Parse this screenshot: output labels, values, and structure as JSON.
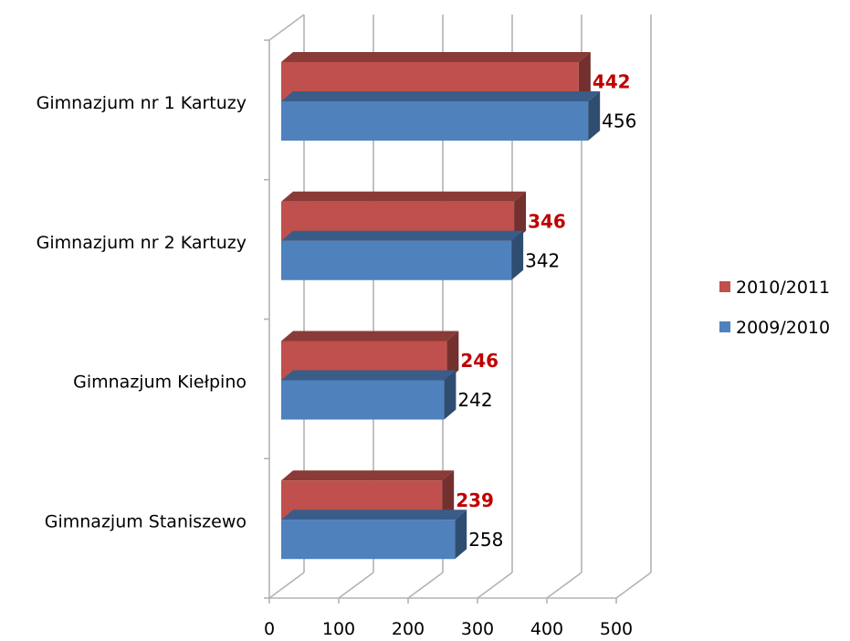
{
  "chart_data": {
    "type": "bar",
    "orientation": "horizontal",
    "style": "3d",
    "categories": [
      "Gimnazjum nr 1 Kartuzy",
      "Gimnazjum nr 2 Kartuzy",
      "Gimnazjum Kiełpino",
      "Gimnazjum Staniszewo"
    ],
    "series": [
      {
        "name": "2010/2011",
        "values": [
          442,
          346,
          246,
          239
        ],
        "color": "#c0504d",
        "label_color": "#c00000",
        "label_bold": true
      },
      {
        "name": "2009/2010",
        "values": [
          456,
          342,
          242,
          258
        ],
        "color": "#4f81bd",
        "label_color": "#000000",
        "label_bold": false
      }
    ],
    "xlim": [
      0,
      500
    ],
    "xticks": [
      "0",
      "100",
      "200",
      "300",
      "400",
      "500"
    ],
    "grid": true,
    "legend_position": "right",
    "title": "",
    "xlabel": "",
    "ylabel": ""
  }
}
